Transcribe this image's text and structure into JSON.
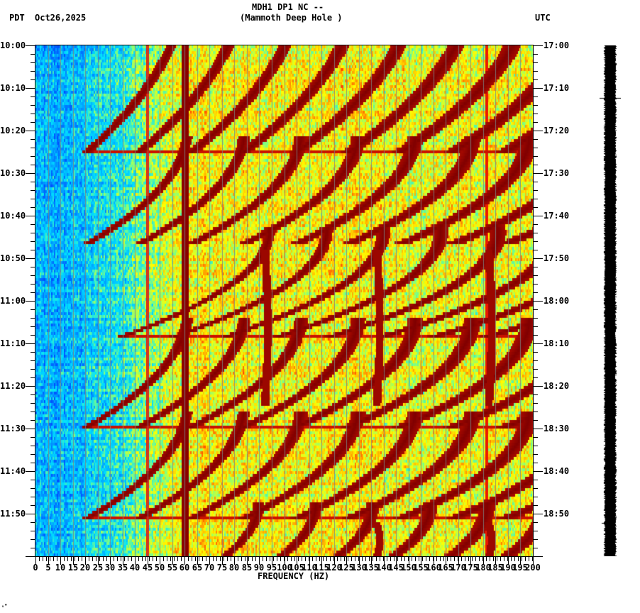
{
  "header": {
    "station_line": "MDH1 DP1 NC --",
    "location_line": "(Mammoth Deep Hole )",
    "left_timezone": "PDT",
    "date": "Oct26,2025",
    "right_timezone": "UTC"
  },
  "footer": {
    "mark": "ᵥᴴ"
  },
  "chart_data": {
    "type": "heatmap",
    "title": "MDH1 DP1 NC -- (Mammoth Deep Hole )",
    "subtitle": "Oct26,2025",
    "xlabel": "FREQUENCY (HZ)",
    "ylabel_left": "PDT",
    "ylabel_right": "UTC",
    "xlim": [
      0,
      200
    ],
    "x_ticks": [
      0,
      5,
      10,
      15,
      20,
      25,
      30,
      35,
      40,
      45,
      50,
      55,
      60,
      65,
      70,
      75,
      80,
      85,
      90,
      95,
      100,
      105,
      110,
      115,
      120,
      125,
      130,
      135,
      140,
      145,
      150,
      155,
      160,
      165,
      170,
      175,
      180,
      185,
      190,
      195,
      200
    ],
    "y_ticks_left": [
      "10:00",
      "10:10",
      "10:20",
      "10:30",
      "10:40",
      "10:50",
      "11:00",
      "11:10",
      "11:20",
      "11:30",
      "11:40",
      "11:50"
    ],
    "y_ticks_right": [
      "17:00",
      "17:10",
      "17:20",
      "17:30",
      "17:40",
      "17:50",
      "18:00",
      "18:10",
      "18:20",
      "18:30",
      "18:40",
      "18:50"
    ],
    "time_range_minutes": 120,
    "colormap": [
      "#0050ff",
      "#00a0ff",
      "#00e0ff",
      "#80ff80",
      "#ffff00",
      "#ffa000",
      "#ff2000",
      "#800000"
    ],
    "background_trend": "low power (blue) below ~30 Hz, rising to yellow/orange above ~40 Hz, yellow above ~140 Hz",
    "persistent_lines_hz": [
      {
        "freq": 60,
        "label": "60 Hz power line",
        "start_min": 0,
        "end_min": 120,
        "intensity": "max"
      },
      {
        "freq": 45,
        "start_min": 0,
        "end_min": 120,
        "intensity": "weak"
      },
      {
        "freq": 181,
        "start_min": 0,
        "end_min": 120,
        "intensity": "weak"
      }
    ],
    "episodic_lines_hz": [
      {
        "freq": 92,
        "start_min": 48,
        "end_min": 84
      },
      {
        "freq": 137,
        "start_min": 48,
        "end_min": 84
      },
      {
        "freq": 182,
        "start_min": 48,
        "end_min": 84
      },
      {
        "freq": 137,
        "start_min": 112,
        "end_min": 120
      },
      {
        "freq": 182,
        "start_min": 112,
        "end_min": 120
      }
    ],
    "chirp_cycles": [
      {
        "reset_min": 25.0,
        "end_freq_hz": 20,
        "start_min": -8
      },
      {
        "reset_min": 46.5,
        "end_freq_hz": 20,
        "start_min": 25.0
      },
      {
        "reset_min": 68.0,
        "end_freq_hz": 35,
        "start_min": 46.5
      },
      {
        "reset_min": 89.5,
        "end_freq_hz": 20,
        "start_min": 68.0
      },
      {
        "reset_min": 111.0,
        "end_freq_hz": 20,
        "start_min": 89.5
      },
      {
        "reset_min": 132.5,
        "end_freq_hz": 33,
        "start_min": 111.0
      }
    ],
    "chirp_harmonic_spacing_hz": 21,
    "chirp_harmonic_count": 9,
    "legend": "none",
    "grid": false
  }
}
